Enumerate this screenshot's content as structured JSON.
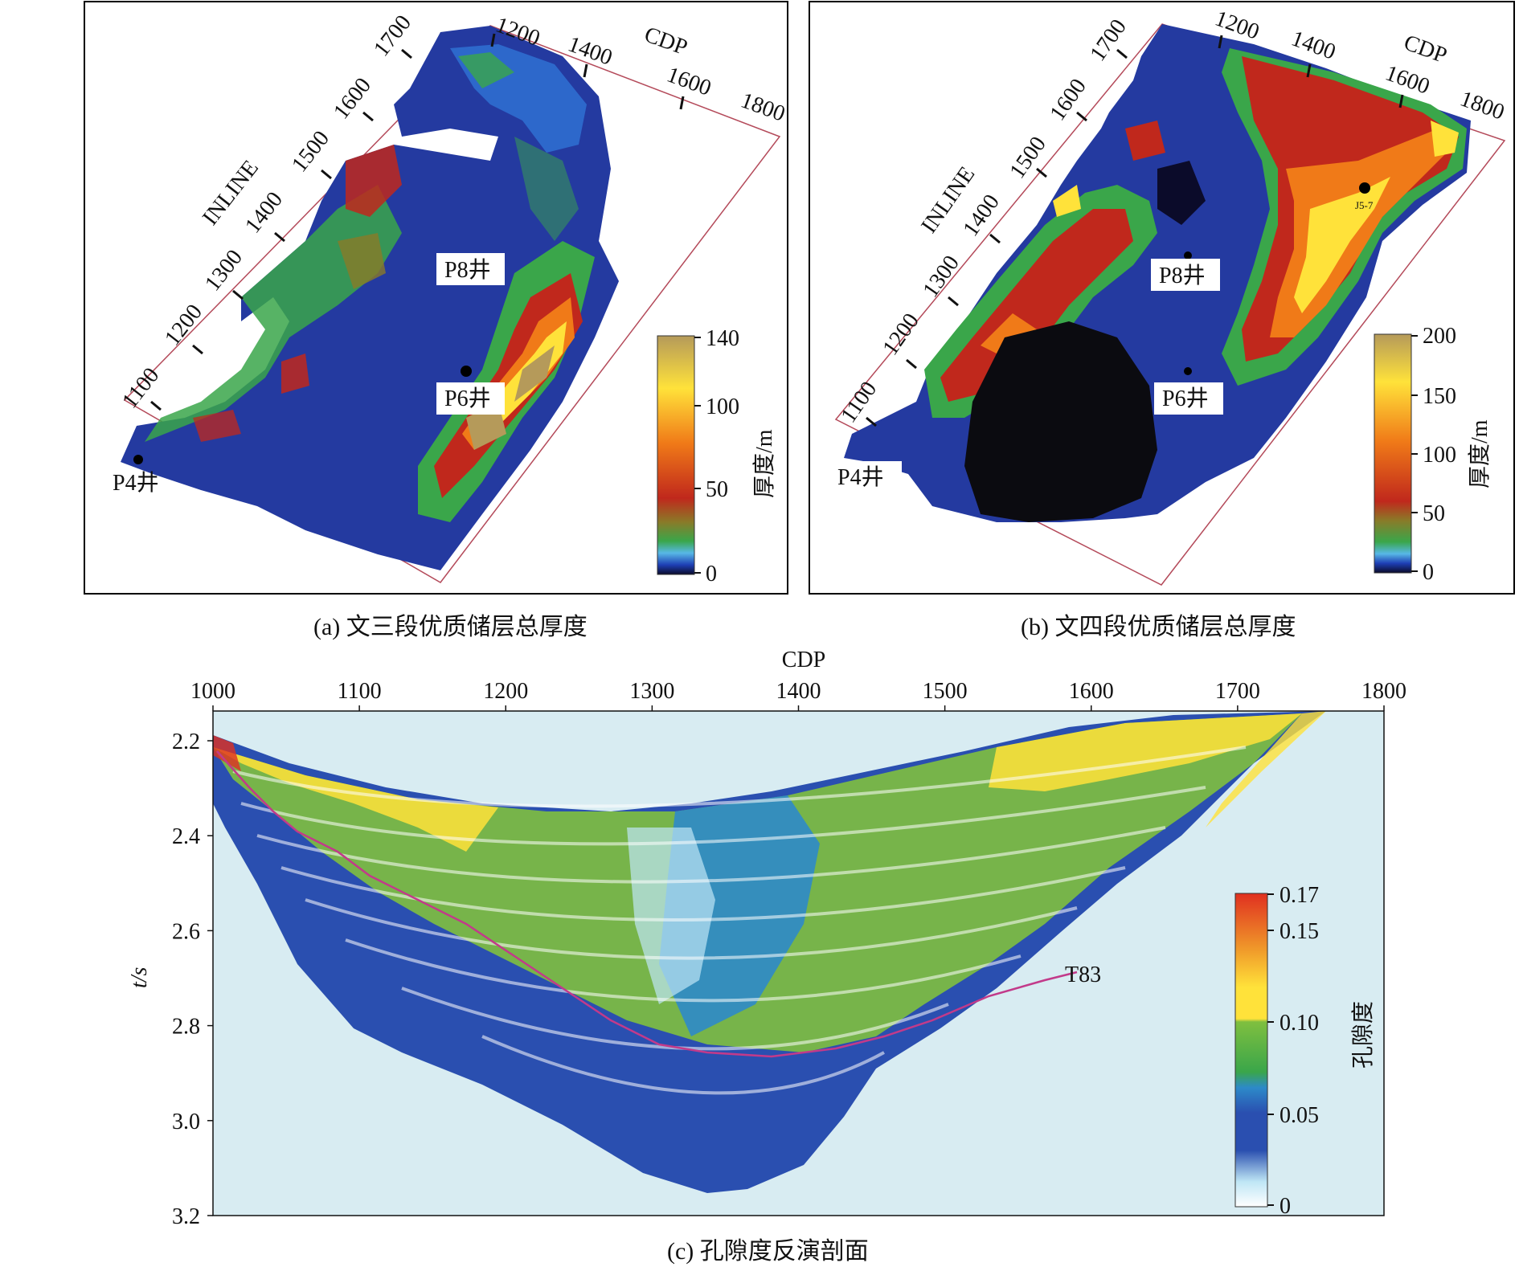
{
  "panel_a": {
    "caption": "(a) 文三段优质储层总厚度",
    "cdp_title": "CDP",
    "inline_title": "INLINE",
    "cdp_ticks": [
      "1200",
      "1400",
      "1600",
      "1800"
    ],
    "inline_ticks": [
      "1100",
      "1200",
      "1300",
      "1400",
      "1500",
      "1600",
      "1700"
    ],
    "wells": [
      "P8井",
      "P6井",
      "P4井"
    ],
    "colorbar_label": "厚度/m",
    "colorbar_ticks": [
      "140",
      "100",
      "50",
      "0"
    ]
  },
  "panel_b": {
    "caption": "(b) 文四段优质储层总厚度",
    "cdp_title": "CDP",
    "inline_title": "INLINE",
    "cdp_ticks": [
      "1200",
      "1400",
      "1600",
      "1800"
    ],
    "inline_ticks": [
      "1100",
      "1200",
      "1300",
      "1400",
      "1500",
      "1600",
      "1700"
    ],
    "wells": [
      "P8井",
      "P6井",
      "P4井"
    ],
    "extra_well": "J5-7",
    "colorbar_label": "厚度/m",
    "colorbar_ticks": [
      "200",
      "150",
      "100",
      "50",
      "0"
    ]
  },
  "panel_c": {
    "caption": "(c) 孔隙度反演剖面",
    "x_title": "CDP",
    "x_ticks": [
      "1000",
      "1100",
      "1200",
      "1300",
      "1400",
      "1500",
      "1600",
      "1700",
      "1800"
    ],
    "y_title": "t/s",
    "y_ticks": [
      "2.2",
      "2.4",
      "2.6",
      "2.8",
      "3.0",
      "3.2"
    ],
    "horizon_label": "T83",
    "colorbar_label": "孔隙度",
    "colorbar_ticks": [
      "0.17",
      "0.15",
      "0.10",
      "0.05",
      "0"
    ]
  },
  "colors": {
    "thickness_scale": [
      "#0b0b2a",
      "#1e3fb5",
      "#2f74d6",
      "#58b8e6",
      "#3aa64a",
      "#8a7a28",
      "#c0281c",
      "#f07a18",
      "#ffe23a",
      "#b59a5a"
    ],
    "porosity_scale": [
      "#ffffff",
      "#bfe6f5",
      "#2a4fb0",
      "#2d8ac9",
      "#7fbf3f",
      "#ffe23a",
      "#f09a2a",
      "#e03020"
    ],
    "section_background": "#d8ecf2",
    "horizon": "#c23a8a"
  }
}
